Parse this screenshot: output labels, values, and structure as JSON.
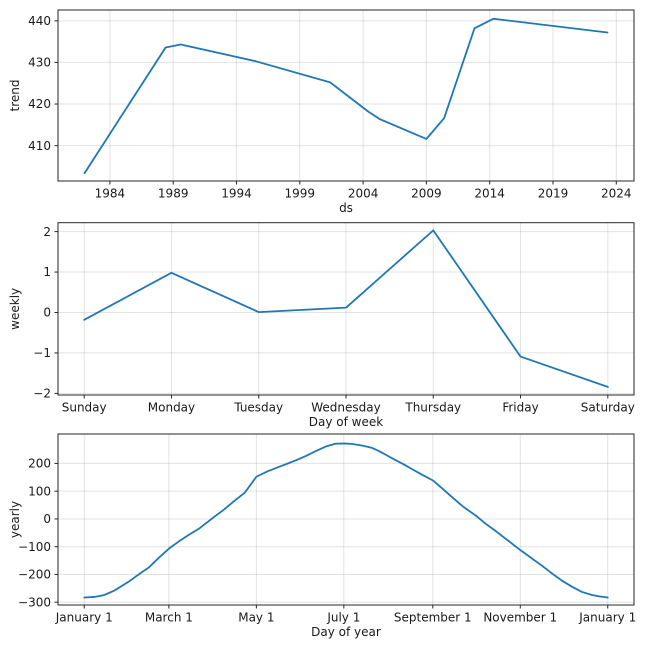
{
  "figure": {
    "kind": "forecast components",
    "background": "#ffffff",
    "accent_color": "#1f77b4",
    "grid_color": "rgba(128,128,128,0.22)",
    "spine_color": "#262626"
  },
  "chart_data": [
    {
      "id": "trend",
      "type": "line",
      "title": "",
      "xlabel": "ds",
      "ylabel": "trend",
      "legend_position": "none",
      "grid": true,
      "xlim": [
        1979.9,
        2025.4
      ],
      "ylim": [
        401.5,
        442.6
      ],
      "xticks": [
        1984,
        1989,
        1994,
        1999,
        2004,
        2009,
        2014,
        2019,
        2024
      ],
      "xtick_labels": [
        "1984",
        "1989",
        "1994",
        "1999",
        "2004",
        "2009",
        "2014",
        "2019",
        "2024"
      ],
      "yticks": [
        410,
        420,
        430,
        440
      ],
      "ytick_labels": [
        "410",
        "420",
        "430",
        "440"
      ],
      "x": [
        1982.0,
        1988.4,
        1989.6,
        1995.5,
        2001.4,
        2004.4,
        2005.3,
        2009.0,
        2010.4,
        2012.8,
        2014.3,
        2023.3
      ],
      "y": [
        403.4,
        433.6,
        434.3,
        430.3,
        425.2,
        418.2,
        416.4,
        411.6,
        416.6,
        438.2,
        440.5,
        437.2
      ],
      "line_color": "#1f77b4"
    },
    {
      "id": "weekly",
      "type": "line",
      "title": "",
      "xlabel": "Day of week",
      "ylabel": "weekly",
      "legend_position": "none",
      "grid": true,
      "xlim": [
        -0.3,
        6.3
      ],
      "ylim": [
        -2.04,
        2.22
      ],
      "xticks": [
        0,
        1,
        2,
        3,
        4,
        5,
        6
      ],
      "xtick_labels": [
        "Sunday",
        "Monday",
        "Tuesday",
        "Wednesday",
        "Thursday",
        "Friday",
        "Saturday"
      ],
      "yticks": [
        -2,
        -1,
        0,
        1,
        2
      ],
      "ytick_labels": [
        "−2",
        "−1",
        "0",
        "1",
        "2"
      ],
      "x": [
        0,
        1,
        2,
        3,
        4,
        5,
        6
      ],
      "y": [
        -0.18,
        0.98,
        0.01,
        0.12,
        2.03,
        -1.09,
        -1.84
      ],
      "line_color": "#1f77b4"
    },
    {
      "id": "yearly",
      "type": "line",
      "title": "",
      "xlabel": "Day of year",
      "ylabel": "yearly",
      "legend_position": "none",
      "grid": true,
      "xlim": [
        -17.3,
        384.3
      ],
      "ylim": [
        -310,
        306
      ],
      "xticks": [
        1,
        60,
        121,
        182,
        244,
        305,
        366
      ],
      "xtick_labels": [
        "January 1",
        "March 1",
        "May 1",
        "July 1",
        "September 1",
        "November 1",
        "January 1"
      ],
      "yticks": [
        -300,
        -200,
        -100,
        0,
        100,
        200
      ],
      "ytick_labels": [
        "−300",
        "−200",
        "−100",
        "0",
        "100",
        "200"
      ],
      "x": [
        1,
        8,
        15,
        22,
        32,
        40,
        46,
        53,
        60,
        67,
        74,
        81,
        91,
        98,
        105,
        113,
        121,
        129,
        136,
        142,
        149,
        156,
        163,
        170,
        176,
        182,
        188,
        195,
        201,
        206,
        212,
        218,
        224,
        230,
        237,
        244,
        251,
        258,
        265,
        274,
        281,
        288,
        295,
        305,
        312,
        320,
        327,
        334,
        341,
        348,
        355,
        360,
        366
      ],
      "y": [
        -283,
        -281,
        -274,
        -258,
        -226,
        -196,
        -175,
        -140,
        -107,
        -81,
        -57,
        -35,
        5,
        32,
        62,
        95,
        152,
        172,
        186,
        198,
        212,
        228,
        246,
        262,
        271,
        272,
        270,
        264,
        257,
        246,
        229,
        212,
        196,
        178,
        158,
        139,
        108,
        76,
        45,
        12,
        -18,
        -44,
        -72,
        -112,
        -138,
        -168,
        -196,
        -222,
        -244,
        -263,
        -274,
        -279,
        -283
      ],
      "line_color": "#1f77b4"
    }
  ]
}
